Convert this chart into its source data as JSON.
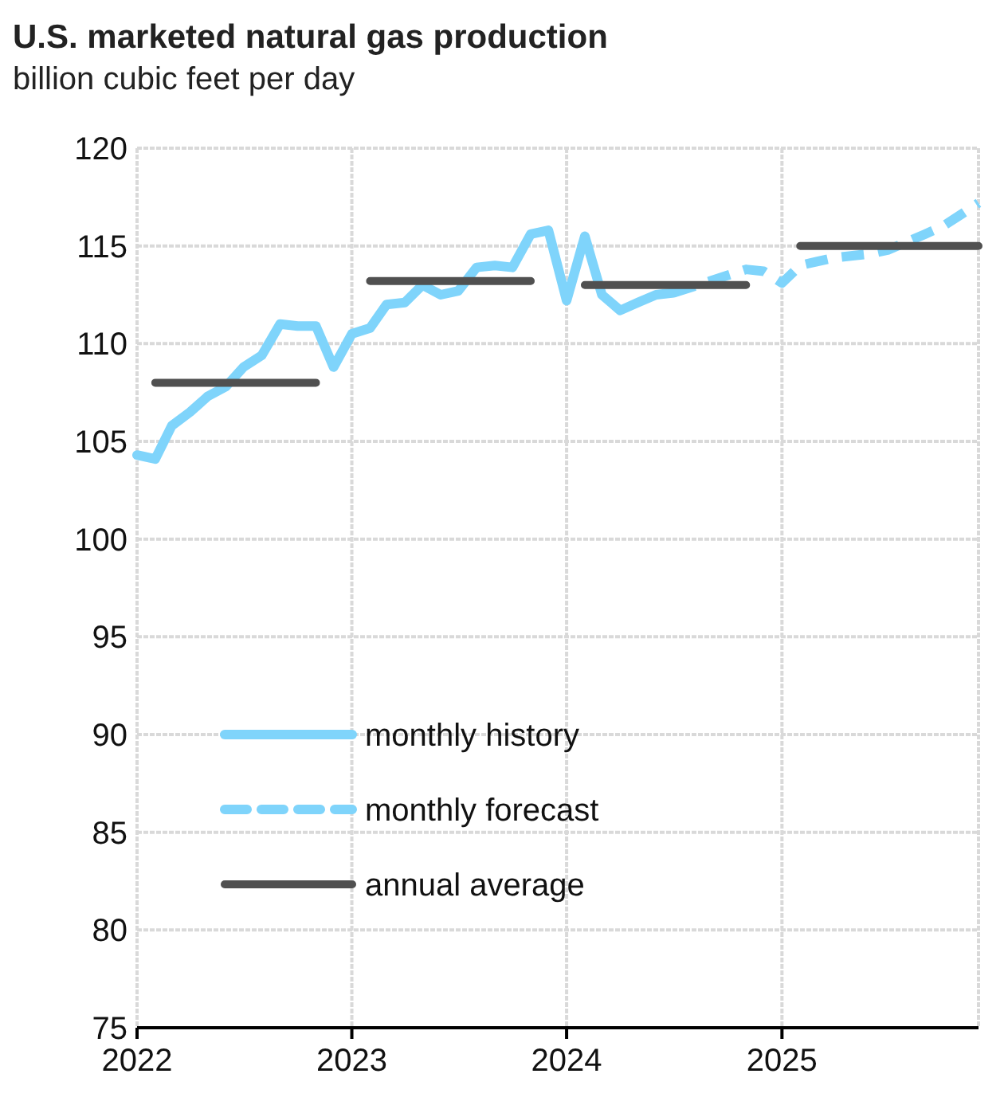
{
  "chart_data": {
    "type": "line",
    "title": "U.S. marketed natural gas production",
    "subtitle": "billion cubic feet per day",
    "xlim": [
      "2022-01",
      "2025-12"
    ],
    "xticks": [
      {
        "value": "2022",
        "label": "2022"
      },
      {
        "value": "2023",
        "label": "2023"
      },
      {
        "value": "2024",
        "label": "2024"
      },
      {
        "value": "2025",
        "label": "2025"
      }
    ],
    "ylim": [
      75,
      120
    ],
    "yticks": [
      75,
      80,
      85,
      90,
      95,
      100,
      105,
      110,
      115,
      120
    ],
    "grid": true,
    "legend": "bottom left",
    "series": [
      {
        "name": "monthly history",
        "color": "#7fd4fb",
        "line_style": "solid",
        "x": [
          "2022-01",
          "2022-02",
          "2022-03",
          "2022-04",
          "2022-05",
          "2022-06",
          "2022-07",
          "2022-08",
          "2022-09",
          "2022-10",
          "2022-11",
          "2022-12",
          "2023-01",
          "2023-02",
          "2023-03",
          "2023-04",
          "2023-05",
          "2023-06",
          "2023-07",
          "2023-08",
          "2023-09",
          "2023-10",
          "2023-11",
          "2023-12",
          "2024-01",
          "2024-02",
          "2024-03",
          "2024-04",
          "2024-05",
          "2024-06",
          "2024-07"
        ],
        "values": [
          104.3,
          104.1,
          105.8,
          106.5,
          107.3,
          107.8,
          108.8,
          109.4,
          111.0,
          110.9,
          110.9,
          108.8,
          110.5,
          110.8,
          112.0,
          112.1,
          113.0,
          112.5,
          112.7,
          113.9,
          114.0,
          113.9,
          115.6,
          115.8,
          112.2,
          115.5,
          112.5,
          111.7,
          112.1,
          112.5,
          112.6
        ]
      },
      {
        "name": "monthly forecast",
        "color": "#7fd4fb",
        "line_style": "dashed",
        "x": [
          "2024-07",
          "2024-08",
          "2024-09",
          "2024-10",
          "2024-11",
          "2024-12",
          "2025-01",
          "2025-02",
          "2025-03",
          "2025-04",
          "2025-05",
          "2025-06",
          "2025-07",
          "2025-08",
          "2025-09",
          "2025-10",
          "2025-11",
          "2025-12"
        ],
        "values": [
          112.6,
          112.9,
          113.2,
          113.5,
          113.8,
          113.7,
          113.1,
          114.0,
          114.2,
          114.4,
          114.5,
          114.6,
          114.8,
          115.2,
          115.6,
          116.0,
          116.6,
          117.2
        ]
      },
      {
        "name": "annual average",
        "color": "#505050",
        "line_style": "solid",
        "x": [
          "2022-02",
          "2022-11",
          "2022-12",
          "2023-02",
          "2023-11",
          "2023-12",
          "2024-02",
          "2024-11",
          "2024-12",
          "2025-02",
          "2025-12"
        ],
        "values": [
          108.0,
          108.0,
          null,
          113.2,
          113.2,
          null,
          113.0,
          113.0,
          null,
          115.0,
          115.0
        ]
      }
    ]
  }
}
